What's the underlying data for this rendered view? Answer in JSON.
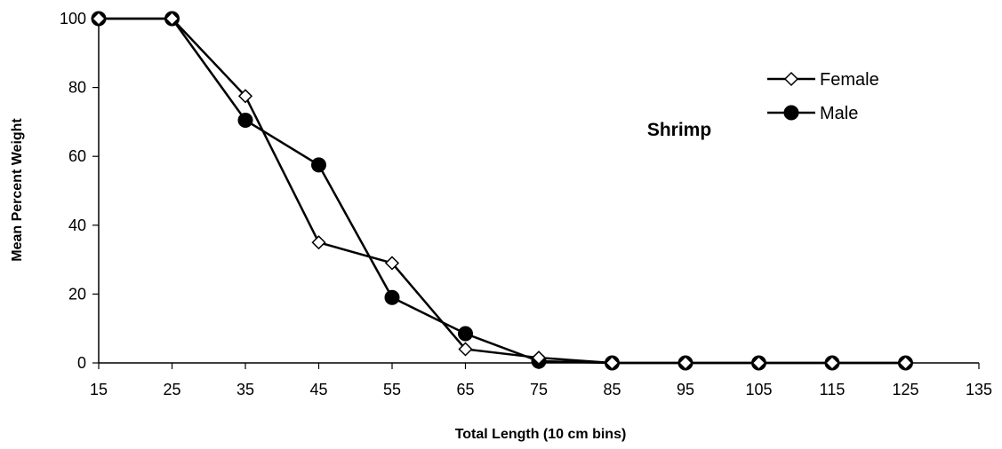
{
  "chart_data": {
    "type": "line",
    "title": "",
    "annotation": "Shrimp",
    "xlabel": "Total Length (10 cm bins)",
    "ylabel": "Mean Percent Weight",
    "xlim": [
      15,
      135
    ],
    "ylim": [
      0,
      100
    ],
    "xticks": [
      15,
      25,
      35,
      45,
      55,
      65,
      75,
      85,
      95,
      105,
      115,
      125,
      135
    ],
    "yticks": [
      0,
      20,
      40,
      60,
      80,
      100
    ],
    "grid": false,
    "legend_position": "top-right",
    "series": [
      {
        "name": "Female",
        "marker": "diamond-open",
        "color": "#000000",
        "x": [
          15,
          25,
          35,
          45,
          55,
          65,
          75,
          85,
          95,
          105,
          115,
          125
        ],
        "y": [
          100,
          100,
          77.5,
          35,
          29,
          4,
          1.5,
          0,
          0,
          0,
          0,
          0
        ]
      },
      {
        "name": "Male",
        "marker": "circle-filled",
        "color": "#000000",
        "x": [
          15,
          25,
          35,
          45,
          55,
          65,
          75,
          85,
          95,
          105,
          115,
          125
        ],
        "y": [
          100,
          100,
          70.5,
          57.5,
          19,
          8.5,
          0.5,
          0,
          0,
          0,
          0,
          0
        ]
      }
    ]
  }
}
